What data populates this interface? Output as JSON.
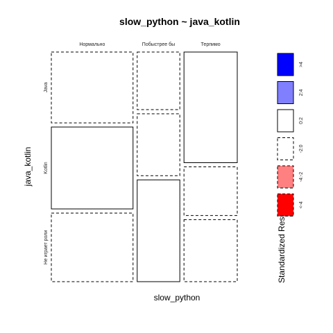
{
  "chart_data": {
    "type": "mosaic",
    "title": "slow_python ~ java_kotlin",
    "xlabel": "slow_python",
    "ylabel": "java_kotlin",
    "x_levels": [
      "Нормально",
      "Побыстрее бы",
      "Терпимо"
    ],
    "y_levels": [
      "Java",
      "Kotlin",
      "Не играет роли"
    ],
    "column_shares": [
      0.46,
      0.24,
      0.3
    ],
    "conditional_shares": [
      [
        0.32,
        0.37,
        0.31
      ],
      [
        0.26,
        0.28,
        0.46
      ],
      [
        0.5,
        0.22,
        0.28
      ]
    ],
    "residual_class": [
      [
        "-2:0",
        "0:2",
        "-2:0"
      ],
      [
        "-2:0",
        "-2:0",
        "0:2"
      ],
      [
        "0:2",
        "-2:0",
        "-2:0"
      ]
    ],
    "legend": {
      "title": "Standardized Residuals:",
      "bins": [
        {
          "label": ">4",
          "fill": "#0000ff",
          "dashed": false
        },
        {
          "label": "2:4",
          "fill": "#8080ff",
          "dashed": false
        },
        {
          "label": "0:2",
          "fill": "#ffffff",
          "dashed": false
        },
        {
          "label": "-2:0",
          "fill": "#ffffff",
          "dashed": true
        },
        {
          "label": "-4:-2",
          "fill": "#ff8080",
          "dashed": true
        },
        {
          "label": "<-4",
          "fill": "#ff0000",
          "dashed": true
        }
      ]
    }
  }
}
